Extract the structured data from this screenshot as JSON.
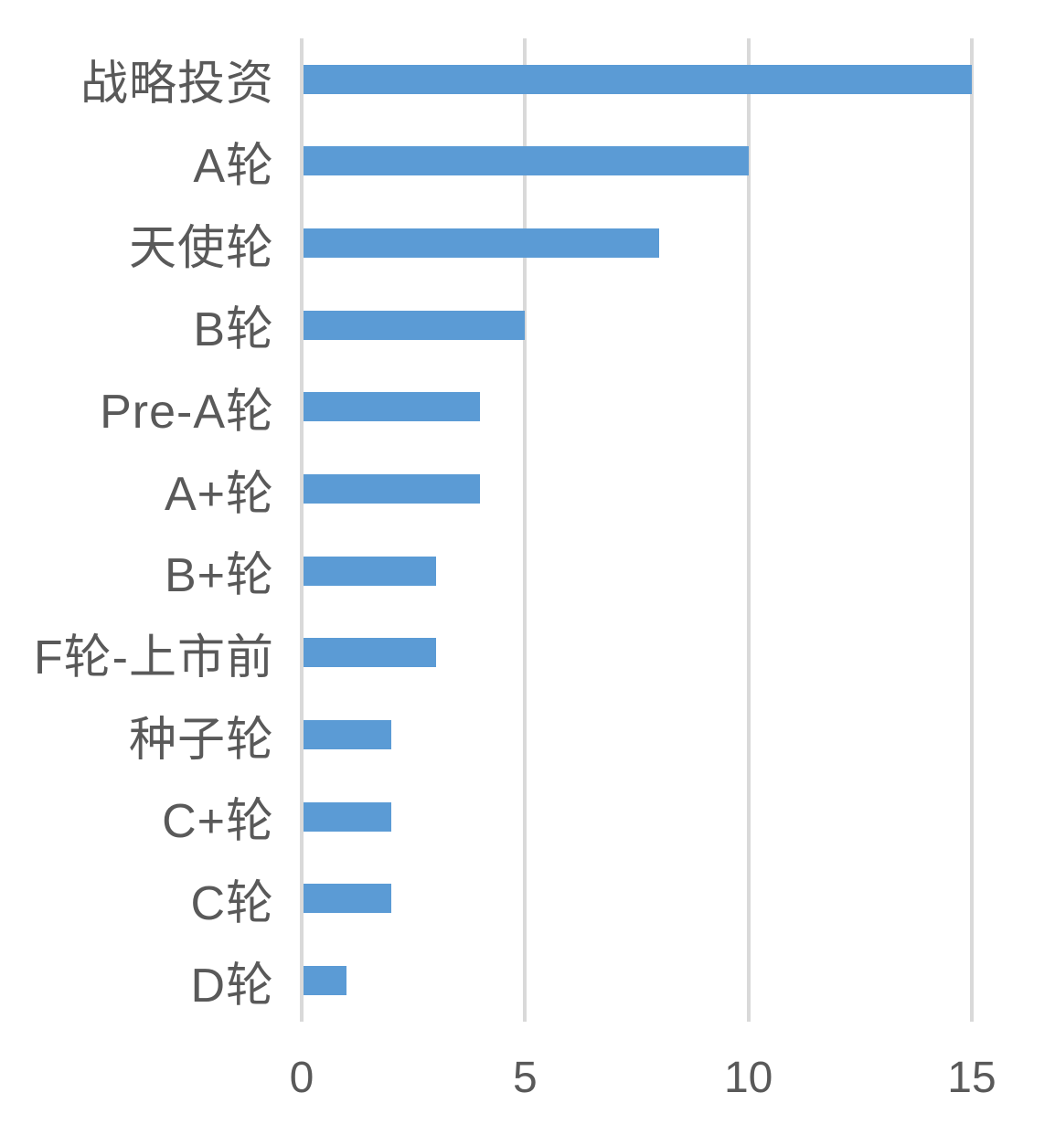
{
  "chart_data": {
    "type": "bar",
    "orientation": "horizontal",
    "title": "",
    "xlabel": "",
    "ylabel": "",
    "categories": [
      "战略投资",
      "A轮",
      "天使轮",
      "B轮",
      "Pre-A轮",
      "A+轮",
      "B+轮",
      "F轮-上市前",
      "种子轮",
      "C+轮",
      "C轮",
      "D轮"
    ],
    "values": [
      15,
      10,
      8,
      5,
      4,
      4,
      3,
      3,
      2,
      2,
      2,
      1
    ],
    "x_ticks": [
      "0",
      "5",
      "10",
      "15"
    ],
    "x_tick_values": [
      0,
      5,
      10,
      15
    ],
    "xlim": [
      0,
      15
    ],
    "grid": "vertical-gridlines-on",
    "legend": "none",
    "colors": {
      "bar": "#5B9BD5",
      "gridline": "#D9D9D9",
      "axis_line": "#D9D9D9",
      "label_text": "#595959",
      "background": "#FFFFFF"
    }
  }
}
